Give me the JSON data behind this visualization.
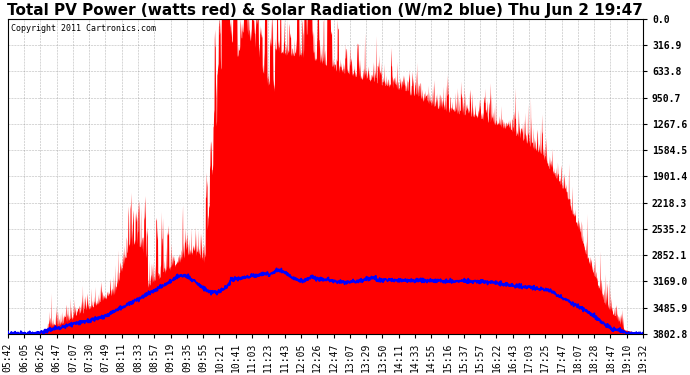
{
  "title": "Total PV Power (watts red) & Solar Radiation (W/m2 blue) Thu Jun 2 19:47",
  "copyright": "Copyright 2011 Cartronics.com",
  "ylabel_right": [
    "3802.8",
    "3485.9",
    "3169.0",
    "2852.1",
    "2535.2",
    "2218.3",
    "1901.4",
    "1584.5",
    "1267.6",
    "950.7",
    "633.8",
    "316.9",
    "0.0"
  ],
  "ymax": 3802.8,
  "ymin": 0.0,
  "yticks": [
    0.0,
    316.9,
    633.8,
    950.7,
    1267.6,
    1584.5,
    1901.4,
    2218.3,
    2535.2,
    2852.1,
    3169.0,
    3485.9,
    3802.8
  ],
  "xtick_labels": [
    "05:42",
    "06:05",
    "06:26",
    "06:47",
    "07:07",
    "07:30",
    "07:49",
    "08:11",
    "08:33",
    "08:57",
    "09:19",
    "09:35",
    "09:55",
    "10:21",
    "10:41",
    "11:03",
    "11:23",
    "11:43",
    "12:05",
    "12:26",
    "12:47",
    "13:07",
    "13:29",
    "13:50",
    "14:11",
    "14:33",
    "14:55",
    "15:16",
    "15:37",
    "15:57",
    "16:22",
    "16:43",
    "17:03",
    "17:25",
    "17:47",
    "18:07",
    "18:28",
    "18:47",
    "19:10",
    "19:32"
  ],
  "background_color": "#ffffff",
  "grid_color": "#888888",
  "fill_color_red": "#ff0000",
  "line_color_blue": "#0000ff",
  "title_fontsize": 11,
  "tick_fontsize": 7
}
